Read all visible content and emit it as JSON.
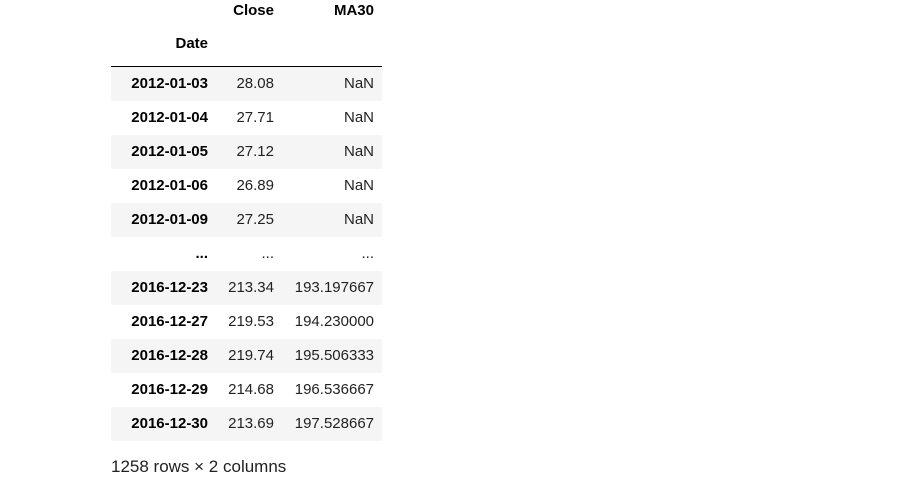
{
  "table": {
    "columns": [
      "Close",
      "MA30"
    ],
    "index_name": "Date",
    "rows": [
      {
        "date": "2012-01-03",
        "close": "28.08",
        "ma30": "NaN"
      },
      {
        "date": "2012-01-04",
        "close": "27.71",
        "ma30": "NaN"
      },
      {
        "date": "2012-01-05",
        "close": "27.12",
        "ma30": "NaN"
      },
      {
        "date": "2012-01-06",
        "close": "26.89",
        "ma30": "NaN"
      },
      {
        "date": "2012-01-09",
        "close": "27.25",
        "ma30": "NaN"
      },
      {
        "date": "...",
        "close": "...",
        "ma30": "..."
      },
      {
        "date": "2016-12-23",
        "close": "213.34",
        "ma30": "193.197667"
      },
      {
        "date": "2016-12-27",
        "close": "219.53",
        "ma30": "194.230000"
      },
      {
        "date": "2016-12-28",
        "close": "219.74",
        "ma30": "195.506333"
      },
      {
        "date": "2016-12-29",
        "close": "214.68",
        "ma30": "196.536667"
      },
      {
        "date": "2016-12-30",
        "close": "213.69",
        "ma30": "197.528667"
      }
    ]
  },
  "caption": "1258 rows × 2 columns"
}
